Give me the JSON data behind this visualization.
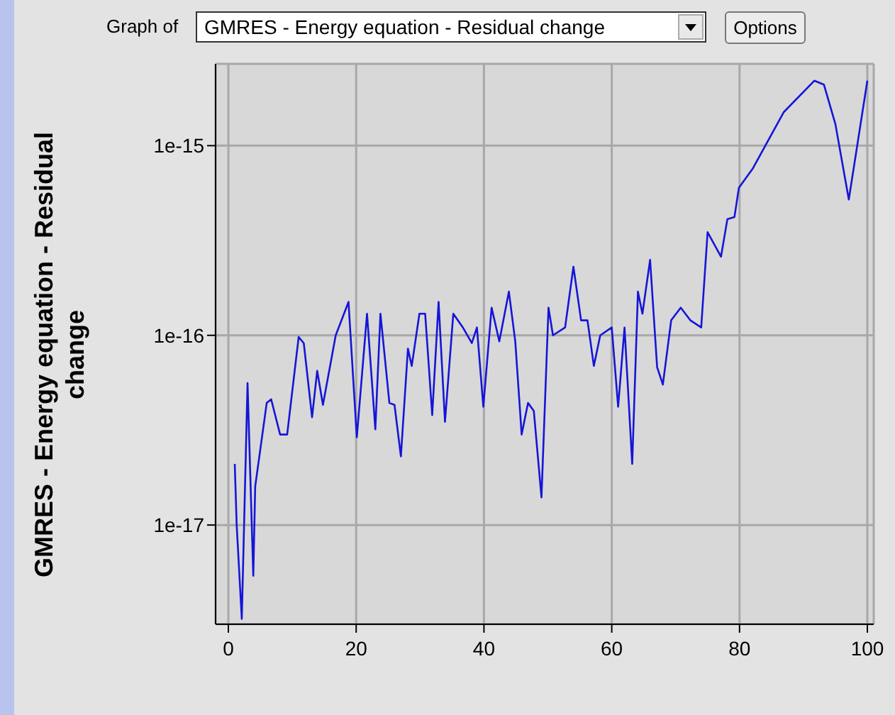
{
  "chart_data": {
    "type": "line",
    "title": "GMRES - Energy equation - Residual change",
    "ylabel": "GMRES - Energy equation - Residual change",
    "annotations": [
      "Graph of",
      "Options"
    ],
    "x": [
      1,
      1.3,
      2.1,
      3,
      3.9,
      4.2,
      6,
      6.7,
      8.1,
      9.2,
      11,
      11.8,
      13.1,
      13.9,
      14.8,
      16.8,
      18.8,
      20.1,
      21.7,
      23,
      23.8,
      25.2,
      26,
      27,
      28.1,
      28.7,
      29.9,
      30.8,
      31.9,
      32.9,
      33.9,
      35.2,
      36.7,
      38.1,
      38.9,
      39.9,
      41.2,
      42.4,
      43.9,
      44.9,
      45.9,
      46.9,
      47.8,
      49,
      50.1,
      50.8,
      52.7,
      54,
      55.2,
      56.2,
      57.2,
      58.2,
      60,
      61,
      62,
      63.2,
      64.1,
      64.8,
      66,
      67.1,
      68,
      69.3,
      70.8,
      72.3,
      74,
      75,
      77.1,
      78.1,
      79.2,
      79.9,
      82.1,
      86.9,
      91.7,
      93.2,
      95,
      97.1,
      100
    ],
    "series": [
      {
        "color": "#1515d8",
        "values": [
          2.1e-17,
          1e-17,
          3.2e-18,
          5.6e-17,
          5.4e-18,
          1.6e-17,
          4.4e-17,
          4.6e-17,
          3e-17,
          3e-17,
          9.8e-17,
          9.1e-17,
          3.7e-17,
          6.5e-17,
          4.3e-17,
          1e-16,
          1.5e-16,
          2.9e-17,
          1.3e-16,
          3.2e-17,
          1.3e-16,
          4.4e-17,
          4.3e-17,
          2.3e-17,
          8.5e-17,
          6.9e-17,
          1.3e-16,
          1.3e-16,
          3.8e-17,
          1.5e-16,
          3.5e-17,
          1.3e-16,
          1.1e-16,
          9.1e-17,
          1.1e-16,
          4.2e-17,
          1.4e-16,
          9.3e-17,
          1.7e-16,
          9.3e-17,
          3e-17,
          4.4e-17,
          4e-17,
          1.4e-17,
          1.4e-16,
          1e-16,
          1.1e-16,
          2.3e-16,
          1.2e-16,
          1.2e-16,
          6.9e-17,
          1e-16,
          1.1e-16,
          4.2e-17,
          1.1e-16,
          2.1e-17,
          1.7e-16,
          1.3e-16,
          2.5e-16,
          6.8e-17,
          5.5e-17,
          1.2e-16,
          1.4e-16,
          1.2e-16,
          1.1e-16,
          3.5e-16,
          2.6e-16,
          4.1e-16,
          4.2e-16,
          6e-16,
          7.6e-16,
          1.5e-15,
          2.2e-15,
          2.1e-15,
          1.3e-15,
          5.2e-16,
          2.2e-15
        ]
      }
    ],
    "xlim": [
      -2,
      101
    ],
    "xticks": [
      0,
      20,
      40,
      60,
      80,
      100
    ],
    "ylim": [
      3e-18,
      2.7e-15
    ],
    "yticks": [
      {
        "value": 1e-17,
        "label": "1e-17"
      },
      {
        "value": 1e-16,
        "label": "1e-16"
      },
      {
        "value": 1e-15,
        "label": "1e-15"
      }
    ],
    "log": "y",
    "grid": true,
    "marker": "none",
    "line_style": "solid"
  }
}
